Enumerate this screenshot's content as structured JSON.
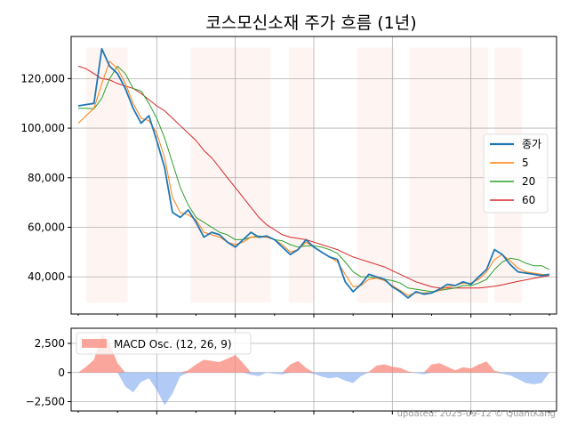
{
  "title": "코스모신소재 주가 흐름 (1년)",
  "footer": "updated: 2025-09-12 © QuantKang",
  "colors": {
    "close": "#1f77b4",
    "ma5": "#ff7f0e",
    "ma20": "#2ca02c",
    "ma60": "#d62728",
    "macd_pos": "#fa8072",
    "macd_neg": "#6495ed",
    "shade": "#fdecea",
    "grid": "#b0b0b0"
  },
  "chart_data": [
    {
      "type": "line",
      "ylim": [
        25000,
        137000
      ],
      "yticks": [
        40000,
        60000,
        80000,
        100000,
        120000
      ],
      "ytick_labels": [
        "40,000",
        "60,000",
        "80,000",
        "100,000",
        "120,000"
      ],
      "x": [
        0,
        1,
        2,
        3,
        4,
        5,
        6,
        7,
        8,
        9,
        10,
        11,
        12,
        13,
        14,
        15,
        16,
        17,
        18,
        19,
        20,
        21,
        22,
        23,
        24,
        25,
        26,
        27,
        28,
        29,
        30,
        31,
        32,
        33,
        34,
        35,
        36,
        37,
        38,
        39,
        40,
        41,
        42,
        43,
        44,
        45,
        46,
        47,
        48,
        49,
        50,
        51,
        52,
        53,
        54,
        55,
        56,
        57,
        58,
        59,
        60
      ],
      "shaded_regions": [
        [
          1.0,
          6.3
        ],
        [
          14.3,
          24.5
        ],
        [
          26.8,
          30.0
        ],
        [
          35.5,
          40.3
        ],
        [
          42.2,
          52.2
        ],
        [
          53.0,
          56.5
        ]
      ],
      "series": [
        {
          "name": "종가",
          "key": "close",
          "width": 1.8,
          "values": [
            109000,
            109500,
            110000,
            132000,
            125000,
            122000,
            116000,
            108000,
            102000,
            105000,
            95000,
            84000,
            66000,
            64000,
            67000,
            62000,
            56000,
            58000,
            57000,
            54000,
            52000,
            55000,
            58000,
            56000,
            56500,
            55000,
            52000,
            49000,
            51000,
            55000,
            52000,
            50000,
            48000,
            47000,
            38000,
            34000,
            37000,
            41000,
            40000,
            39000,
            36000,
            34000,
            31500,
            34000,
            33000,
            33500,
            35000,
            37000,
            36500,
            38000,
            37000,
            40000,
            43000,
            51000,
            49000,
            45000,
            42000,
            41500,
            41000,
            40500,
            41000
          ]
        },
        {
          "name": "5",
          "key": "ma5",
          "width": 1.0,
          "values": [
            102000,
            105000,
            108000,
            118000,
            127000,
            124000,
            118000,
            110000,
            104000,
            103000,
            98000,
            88000,
            72000,
            66000,
            65000,
            63000,
            58000,
            57000,
            56000,
            54000,
            53000,
            54000,
            56000,
            56000,
            56000,
            55000,
            53000,
            50000,
            51000,
            54000,
            52000,
            50000,
            48000,
            46000,
            41000,
            36000,
            36500,
            39000,
            39500,
            38500,
            36500,
            34500,
            32500,
            33500,
            33500,
            33500,
            34500,
            36000,
            36500,
            37500,
            37500,
            39000,
            42000,
            47000,
            49000,
            46500,
            43500,
            42000,
            41500,
            41000,
            40500
          ]
        },
        {
          "name": "20",
          "key": "ma20",
          "width": 1.0,
          "values": [
            108000,
            108000,
            107800,
            112000,
            120000,
            125000,
            122000,
            116000,
            115000,
            110000,
            104000,
            96000,
            86000,
            76000,
            69000,
            64000,
            62000,
            60000,
            58000,
            57000,
            55000,
            55000,
            56000,
            56500,
            56000,
            55000,
            54500,
            53000,
            52000,
            52500,
            52500,
            52000,
            51000,
            49500,
            46000,
            42000,
            40000,
            40000,
            39500,
            39000,
            38500,
            37500,
            35500,
            35000,
            34500,
            34000,
            34500,
            35000,
            35500,
            36500,
            36500,
            37500,
            39000,
            43000,
            46000,
            47500,
            47000,
            45500,
            44500,
            44500,
            43000
          ]
        },
        {
          "name": "60",
          "key": "ma60",
          "width": 1.0,
          "values": [
            125000,
            124000,
            122000,
            120000,
            119500,
            118000,
            117000,
            116000,
            114000,
            111500,
            109000,
            107000,
            104000,
            101000,
            98000,
            95000,
            91000,
            88000,
            84000,
            80000,
            76000,
            72000,
            68000,
            64000,
            61000,
            59000,
            57000,
            56000,
            55500,
            55000,
            54000,
            53000,
            52000,
            51000,
            49500,
            48000,
            47000,
            46000,
            45000,
            44000,
            42500,
            41000,
            39500,
            38000,
            37000,
            36000,
            35500,
            35500,
            35500,
            35500,
            35500,
            35500,
            35800,
            36200,
            36800,
            37500,
            38200,
            38800,
            39400,
            40000,
            40500
          ]
        }
      ]
    },
    {
      "type": "area",
      "ylim": [
        -3300,
        3800
      ],
      "yticks": [
        -2500,
        0,
        2500
      ],
      "ytick_labels": [
        "−2,500",
        "0",
        "2,500"
      ],
      "x": [
        0,
        1,
        2,
        3,
        4,
        5,
        6,
        7,
        8,
        9,
        10,
        11,
        12,
        13,
        14,
        15,
        16,
        17,
        18,
        19,
        20,
        21,
        22,
        23,
        24,
        25,
        26,
        27,
        28,
        29,
        30,
        31,
        32,
        33,
        34,
        35,
        36,
        37,
        38,
        39,
        40,
        41,
        42,
        43,
        44,
        45,
        46,
        47,
        48,
        49,
        50,
        51,
        52,
        53,
        54,
        55,
        56,
        57,
        58,
        59,
        60
      ],
      "series": [
        {
          "name": "MACD Osc. (12, 26, 9)",
          "key": "macd",
          "values": [
            0,
            500,
            1100,
            3300,
            2500,
            800,
            -1200,
            -1700,
            -800,
            -500,
            -1500,
            -2800,
            -1800,
            -300,
            200,
            700,
            1100,
            1000,
            900,
            1200,
            1500,
            800,
            -200,
            -300,
            0,
            -100,
            -150,
            700,
            1000,
            400,
            -100,
            -350,
            -500,
            -400,
            -700,
            -900,
            -300,
            50,
            600,
            700,
            500,
            400,
            100,
            -50,
            -150,
            700,
            800,
            500,
            200,
            450,
            350,
            700,
            950,
            150,
            -100,
            -250,
            -550,
            -900,
            -1000,
            -900,
            0
          ]
        }
      ]
    }
  ]
}
